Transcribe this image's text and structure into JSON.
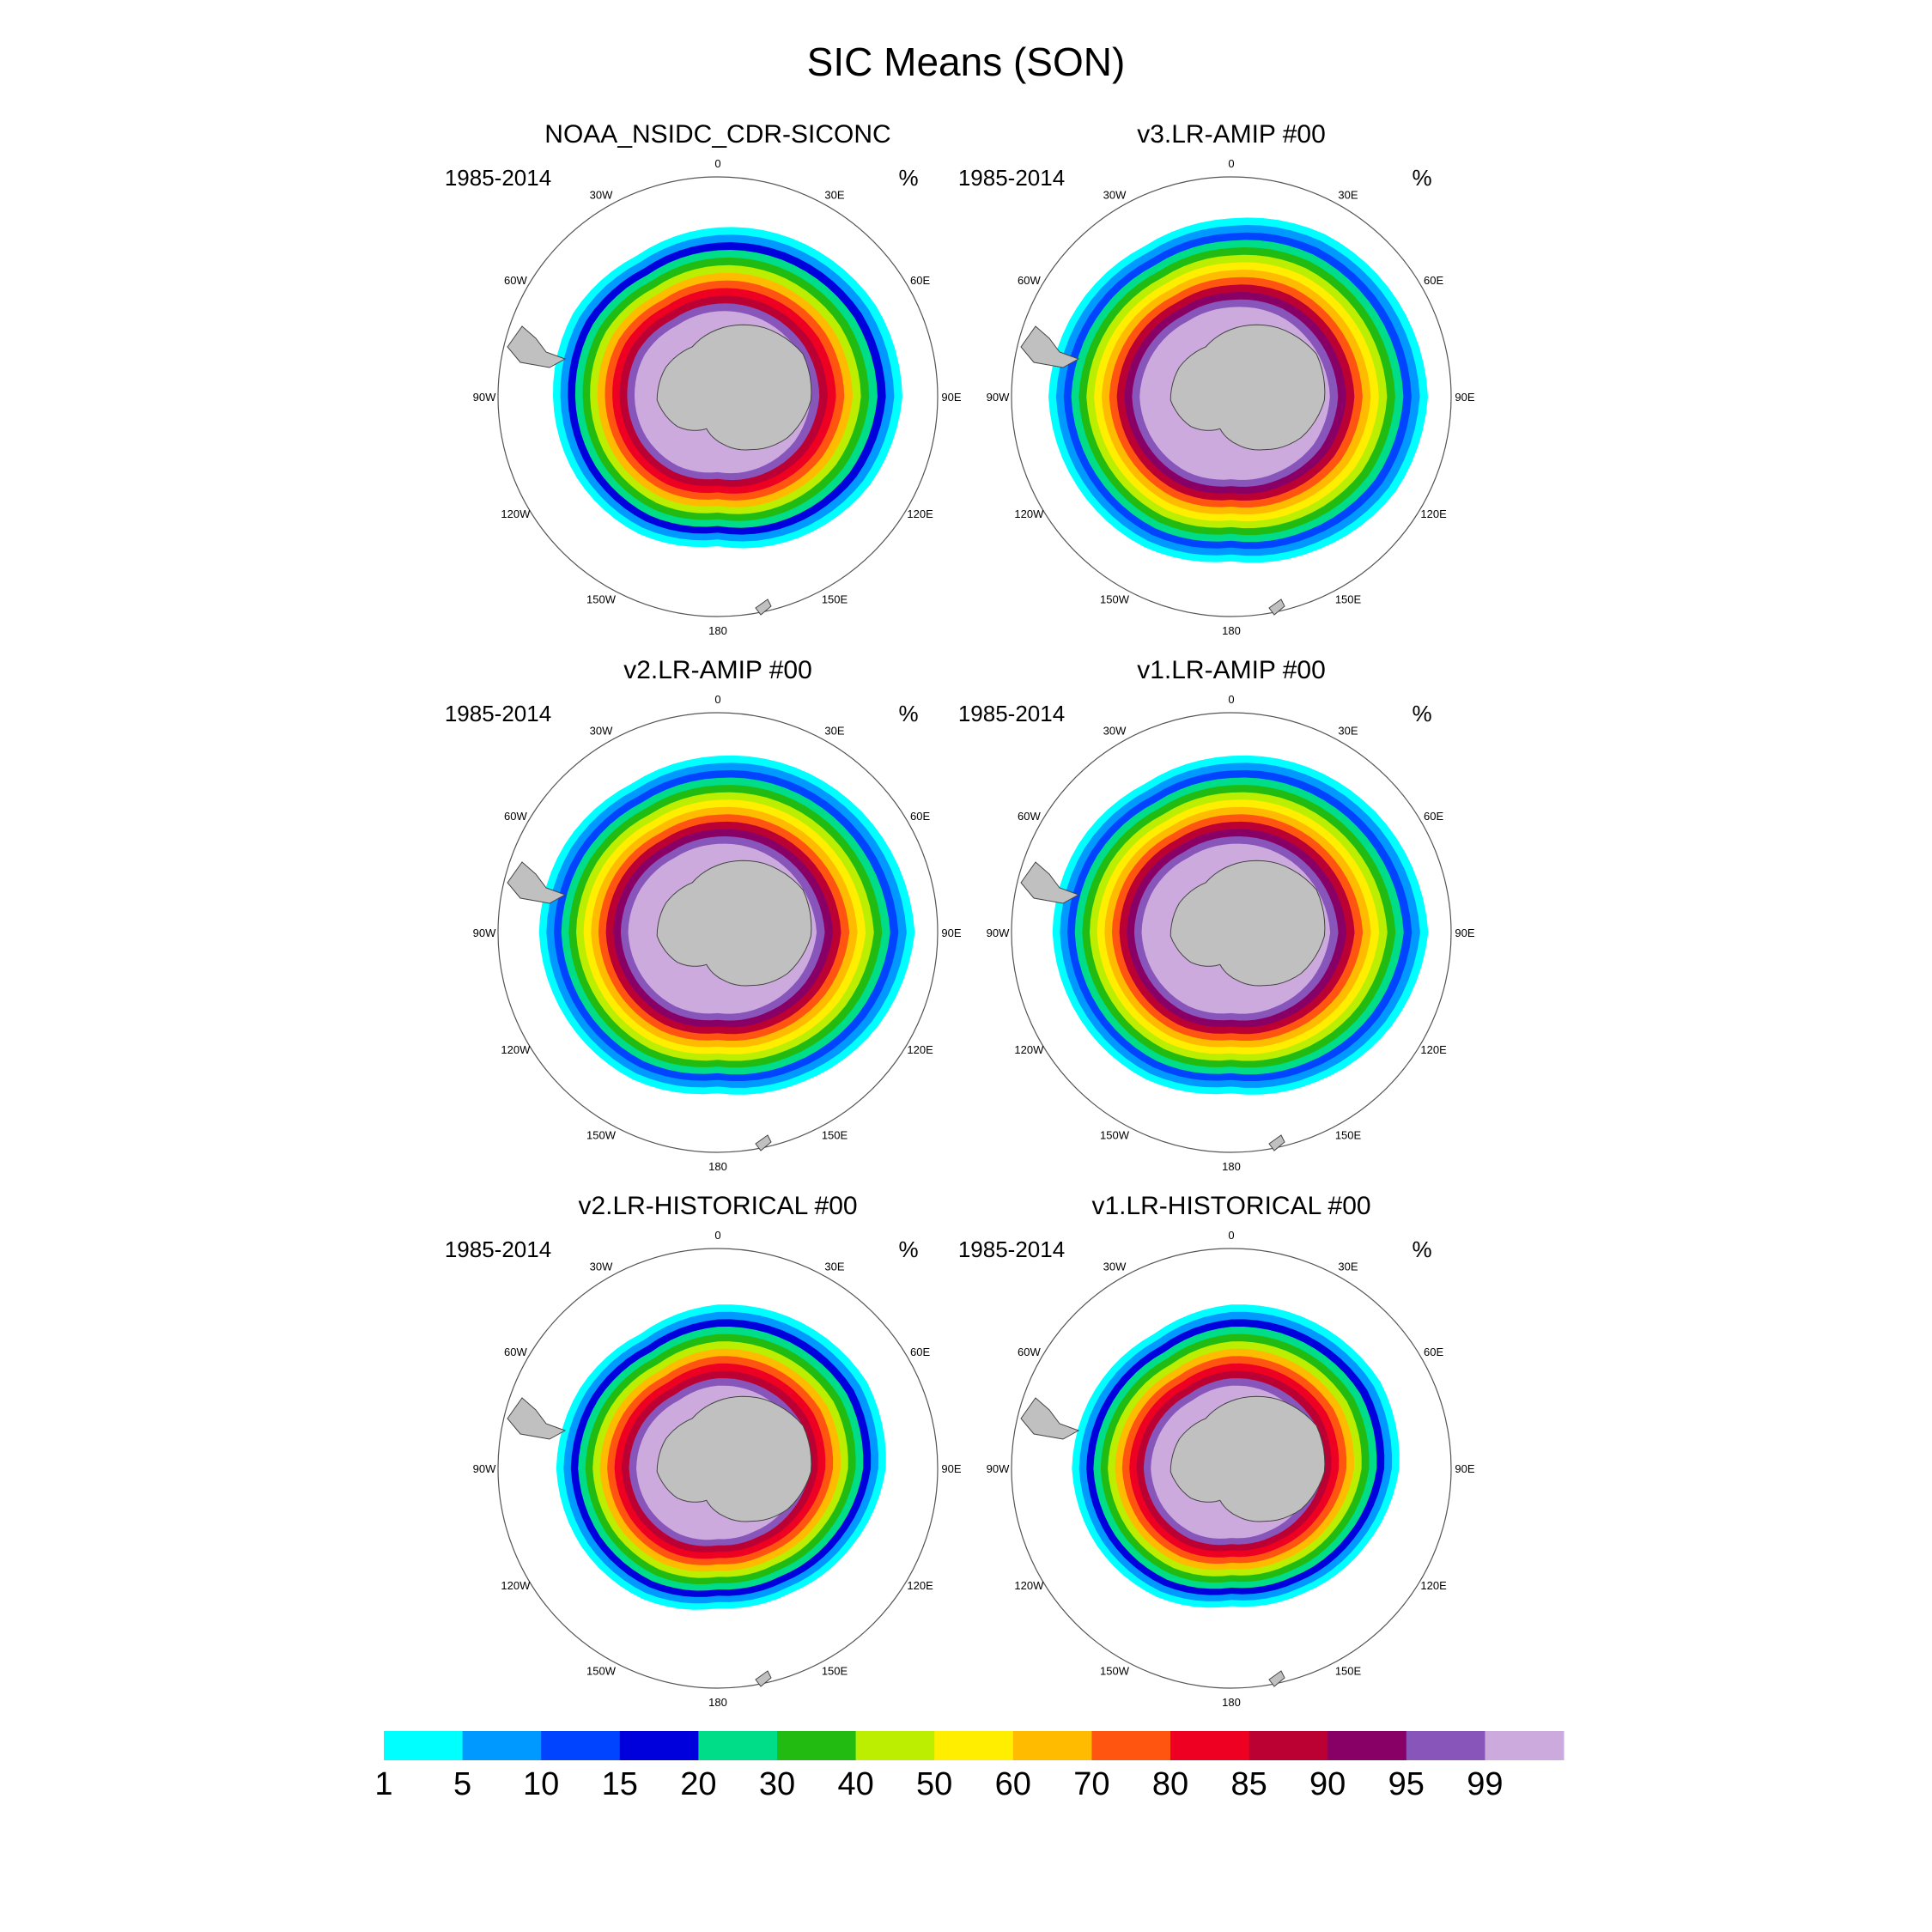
{
  "chart_data": {
    "type": "polar_map_panels",
    "title": "SIC Means (SON)",
    "units": "%",
    "period": "1985-2014",
    "lon_labels": [
      "0",
      "30E",
      "60E",
      "90E",
      "120E",
      "150E",
      "180",
      "150W",
      "120W",
      "90W",
      "60W",
      "30W"
    ],
    "colorbar": {
      "levels": [
        "1",
        "5",
        "10",
        "15",
        "20",
        "30",
        "40",
        "50",
        "60",
        "70",
        "80",
        "85",
        "90",
        "95",
        "99"
      ],
      "colors": [
        "#00ffff",
        "#0099ff",
        "#0044ff",
        "#0000dd",
        "#00dd88",
        "#22bb11",
        "#bbee00",
        "#ffee00",
        "#ffbb00",
        "#ff5511",
        "#ee0022",
        "#bb0033",
        "#880066",
        "#8855bb",
        "#ccaadd"
      ]
    },
    "panels": [
      {
        "title": "NOAA_NSIDC_CDR-SICONC",
        "period": "1985-2014",
        "units": "%",
        "extent_scale": 1.0,
        "bands": 12
      },
      {
        "title": "v3.LR-AMIP  #00",
        "period": "1985-2014",
        "units": "%",
        "extent_scale": 1.04,
        "bands": 13
      },
      {
        "title": "v2.LR-AMIP  #00",
        "period": "1985-2014",
        "units": "%",
        "extent_scale": 1.03,
        "bands": 13
      },
      {
        "title": "v1.LR-AMIP  #00",
        "period": "1985-2014",
        "units": "%",
        "extent_scale": 1.03,
        "bands": 13
      },
      {
        "title": "v2.LR-HISTORICAL  #00",
        "period": "1985-2014",
        "units": "%",
        "extent_scale": 0.98,
        "bands": 12
      },
      {
        "title": "v1.LR-HISTORICAL  #00",
        "period": "1985-2014",
        "units": "%",
        "extent_scale": 0.98,
        "bands": 12
      }
    ]
  },
  "land_color": "#c0c0c0"
}
